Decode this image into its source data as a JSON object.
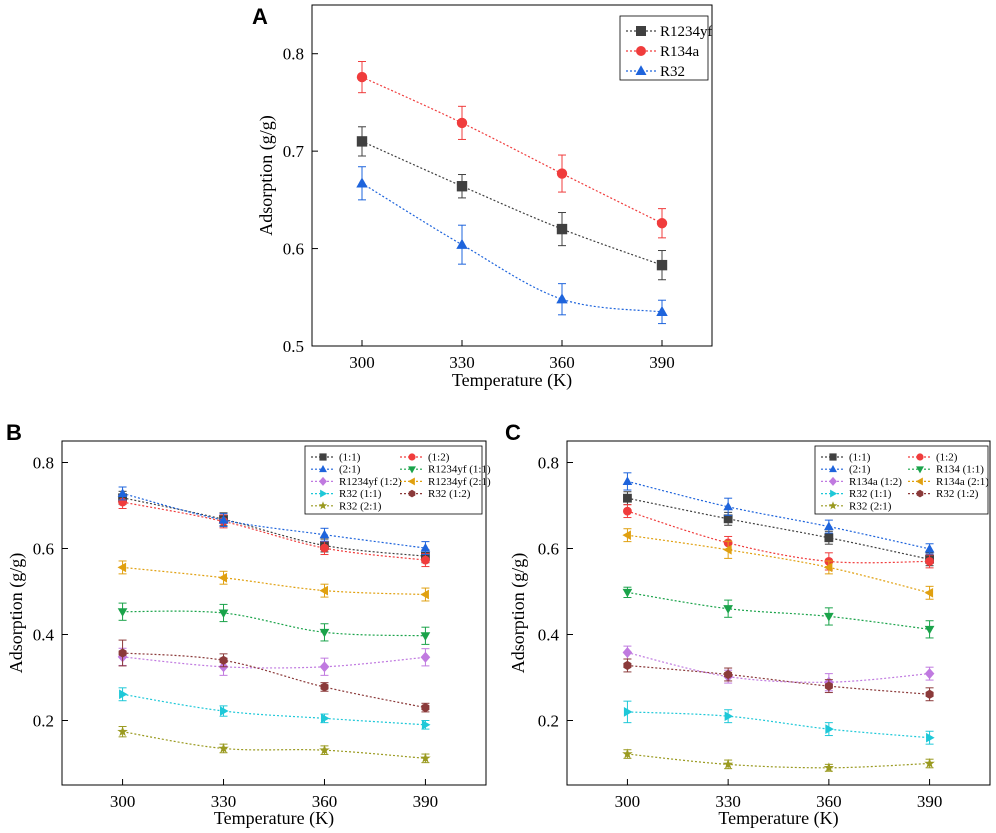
{
  "chart_data": [
    {
      "panel": "A",
      "type": "line",
      "xlabel": "Temperature (K)",
      "ylabel": "Adsorption (g/g)",
      "x": [
        300,
        330,
        360,
        390
      ],
      "ylim": [
        0.5,
        0.85
      ],
      "yticks": [
        0.5,
        0.6,
        0.7,
        0.8
      ],
      "yticklabels": [
        "0.5",
        "0.6",
        "0.7",
        "0.8"
      ],
      "xticklabels": [
        "300",
        "330",
        "360",
        "390"
      ],
      "legend_position": "top-right",
      "series": [
        {
          "name": "R1234yf",
          "color": "#404040",
          "marker": "square",
          "values": [
            0.71,
            0.664,
            0.62,
            0.583
          ],
          "errors": [
            0.015,
            0.012,
            0.017,
            0.015
          ]
        },
        {
          "name": "R134a",
          "color": "#f03c3c",
          "marker": "circle",
          "values": [
            0.776,
            0.729,
            0.677,
            0.626
          ],
          "errors": [
            0.016,
            0.017,
            0.019,
            0.015
          ]
        },
        {
          "name": "R32",
          "color": "#1e64dc",
          "marker": "triangle-up",
          "values": [
            0.667,
            0.604,
            0.548,
            0.535
          ],
          "errors": [
            0.017,
            0.02,
            0.016,
            0.012
          ]
        }
      ]
    },
    {
      "panel": "B",
      "type": "line",
      "xlabel": "Temperature (K)",
      "ylabel": "Adsorption (g/g)",
      "x": [
        300,
        330,
        360,
        390
      ],
      "ylim": [
        0.05,
        0.85
      ],
      "yticks": [
        0.2,
        0.4,
        0.6,
        0.8
      ],
      "yticklabels": [
        "0.2",
        "0.4",
        "0.6",
        "0.8"
      ],
      "xticklabels": [
        "300",
        "330",
        "360",
        "390"
      ],
      "legend_position": "top-right",
      "series": [
        {
          "name": "(1:1)",
          "color": "#404040",
          "marker": "square",
          "values": [
            0.718,
            0.668,
            0.607,
            0.582
          ],
          "errors": [
            0.015,
            0.015,
            0.015,
            0.015
          ]
        },
        {
          "name": "(1:2)",
          "color": "#f03c3c",
          "marker": "circle",
          "values": [
            0.708,
            0.663,
            0.601,
            0.573
          ],
          "errors": [
            0.015,
            0.015,
            0.015,
            0.015
          ]
        },
        {
          "name": "(2:1)",
          "color": "#1e64dc",
          "marker": "triangle-up",
          "values": [
            0.728,
            0.666,
            0.632,
            0.601
          ],
          "errors": [
            0.015,
            0.015,
            0.015,
            0.015
          ]
        },
        {
          "name": "R1234yf (1:1)",
          "color": "#1aa34a",
          "marker": "triangle-down",
          "values": [
            0.453,
            0.45,
            0.405,
            0.397
          ],
          "errors": [
            0.02,
            0.02,
            0.02,
            0.02
          ]
        },
        {
          "name": "R1234yf (1:2)",
          "color": "#c07ae0",
          "marker": "diamond",
          "values": [
            0.348,
            0.325,
            0.325,
            0.347
          ],
          "errors": [
            0.02,
            0.02,
            0.02,
            0.02
          ]
        },
        {
          "name": "R1234yf (2:1)",
          "color": "#e0a010",
          "marker": "triangle-left",
          "values": [
            0.556,
            0.532,
            0.502,
            0.493
          ],
          "errors": [
            0.015,
            0.015,
            0.015,
            0.015
          ]
        },
        {
          "name": "R32 (1:1)",
          "color": "#1ec8d8",
          "marker": "triangle-right",
          "values": [
            0.261,
            0.222,
            0.205,
            0.19
          ],
          "errors": [
            0.015,
            0.012,
            0.01,
            0.01
          ]
        },
        {
          "name": "R32 (1:2)",
          "color": "#8b3a3a",
          "marker": "hexagon",
          "values": [
            0.357,
            0.34,
            0.278,
            0.23
          ],
          "errors": [
            0.03,
            0.015,
            0.01,
            0.01
          ]
        },
        {
          "name": "R32 (2:1)",
          "color": "#9a9a20",
          "marker": "star",
          "values": [
            0.174,
            0.135,
            0.131,
            0.112
          ],
          "errors": [
            0.012,
            0.01,
            0.01,
            0.01
          ]
        }
      ]
    },
    {
      "panel": "C",
      "type": "line",
      "xlabel": "Temperature (K)",
      "ylabel": "Adsorption (g/g)",
      "x": [
        300,
        330,
        360,
        390
      ],
      "ylim": [
        0.05,
        0.85
      ],
      "yticks": [
        0.2,
        0.4,
        0.6,
        0.8
      ],
      "yticklabels": [
        "0.2",
        "0.4",
        "0.6",
        "0.8"
      ],
      "xticklabels": [
        "300",
        "330",
        "360",
        "390"
      ],
      "legend_position": "top-right",
      "series": [
        {
          "name": "(1:1)",
          "color": "#404040",
          "marker": "square",
          "values": [
            0.717,
            0.669,
            0.625,
            0.575
          ],
          "errors": [
            0.015,
            0.015,
            0.015,
            0.015
          ]
        },
        {
          "name": "(1:2)",
          "color": "#f03c3c",
          "marker": "circle",
          "values": [
            0.687,
            0.613,
            0.57,
            0.57
          ],
          "errors": [
            0.015,
            0.015,
            0.02,
            0.015
          ]
        },
        {
          "name": "(2:1)",
          "color": "#1e64dc",
          "marker": "triangle-up",
          "values": [
            0.756,
            0.697,
            0.651,
            0.599
          ],
          "errors": [
            0.02,
            0.02,
            0.015,
            0.012
          ]
        },
        {
          "name": "R134 (1:1)",
          "color": "#1aa34a",
          "marker": "triangle-down",
          "values": [
            0.498,
            0.46,
            0.442,
            0.412
          ],
          "errors": [
            0.012,
            0.02,
            0.02,
            0.02
          ]
        },
        {
          "name": "R134a (1:2)",
          "color": "#c07ae0",
          "marker": "diamond",
          "values": [
            0.358,
            0.302,
            0.289,
            0.309
          ],
          "errors": [
            0.015,
            0.015,
            0.02,
            0.015
          ]
        },
        {
          "name": "R134a (2:1)",
          "color": "#e0a010",
          "marker": "triangle-left",
          "values": [
            0.631,
            0.597,
            0.556,
            0.497
          ],
          "errors": [
            0.015,
            0.02,
            0.015,
            0.015
          ]
        },
        {
          "name": "R32 (1:1)",
          "color": "#1ec8d8",
          "marker": "triangle-right",
          "values": [
            0.22,
            0.21,
            0.18,
            0.16
          ],
          "errors": [
            0.025,
            0.015,
            0.015,
            0.015
          ]
        },
        {
          "name": "R32 (1:2)",
          "color": "#8b3a3a",
          "marker": "hexagon",
          "values": [
            0.328,
            0.307,
            0.28,
            0.261
          ],
          "errors": [
            0.015,
            0.015,
            0.015,
            0.015
          ]
        },
        {
          "name": "R32 (2:1)",
          "color": "#9a9a20",
          "marker": "star",
          "values": [
            0.122,
            0.098,
            0.09,
            0.1
          ],
          "errors": [
            0.01,
            0.01,
            0.008,
            0.01
          ]
        }
      ]
    }
  ]
}
